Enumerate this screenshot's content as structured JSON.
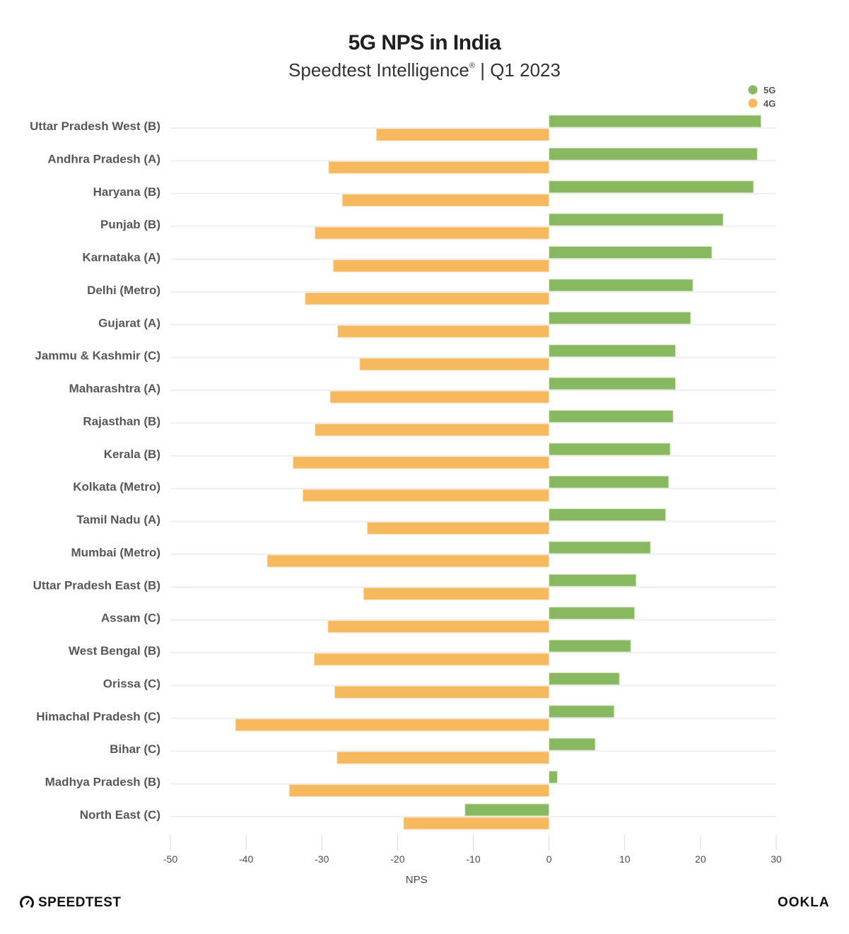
{
  "header": {
    "title": "5G NPS in India",
    "subtitle": "Speedtest Intelligence",
    "subtitle_mark": "®",
    "subtitle_suffix": " | Q1 2023"
  },
  "footer": {
    "left_logo": "SPEEDTEST",
    "left_logo_icon": "speedometer-gauge-icon",
    "right_logo": "OOKLA"
  },
  "chart_data": {
    "type": "bar",
    "orientation": "horizontal",
    "title": "5G NPS in India",
    "subtitle": "Speedtest Intelligence® | Q1 2023",
    "xlabel": "NPS",
    "ylabel": "",
    "xlim": [
      -50,
      30
    ],
    "xticks": [
      -50,
      -40,
      -30,
      -20,
      -10,
      0,
      10,
      20,
      30
    ],
    "grid": "horizontal",
    "legend_position": "top-right",
    "categories": [
      "Uttar Pradesh West (B)",
      "Andhra Pradesh (A)",
      "Haryana (B)",
      "Punjab (B)",
      "Karnataka (A)",
      "Delhi (Metro)",
      "Gujarat (A)",
      "Jammu & Kashmir (C)",
      "Maharashtra (A)",
      "Rajasthan (B)",
      "Kerala (B)",
      "Kolkata (Metro)",
      "Tamil Nadu (A)",
      "Mumbai (Metro)",
      "Uttar Pradesh East (B)",
      "Assam (C)",
      "West Bengal (B)",
      "Orissa (C)",
      "Himachal Pradesh (C)",
      "Bihar (C)",
      "Madhya Pradesh (B)",
      "North East (C)"
    ],
    "series": [
      {
        "name": "5G",
        "color": "#88b860",
        "values": [
          28.0,
          27.5,
          27.0,
          23.0,
          21.5,
          19.0,
          18.7,
          16.7,
          16.7,
          16.4,
          16.0,
          15.8,
          15.4,
          13.4,
          11.5,
          11.3,
          10.8,
          9.3,
          8.6,
          6.1,
          1.1,
          -11.1
        ]
      },
      {
        "name": "4G",
        "color": "#f6b95e",
        "values": [
          -22.8,
          -29.1,
          -27.3,
          -30.9,
          -28.5,
          -32.2,
          -27.9,
          -25.0,
          -28.9,
          -30.9,
          -33.8,
          -32.5,
          -24.0,
          -37.2,
          -24.5,
          -29.2,
          -31.0,
          -28.3,
          -41.4,
          -28.0,
          -34.3,
          -19.2
        ]
      }
    ]
  }
}
